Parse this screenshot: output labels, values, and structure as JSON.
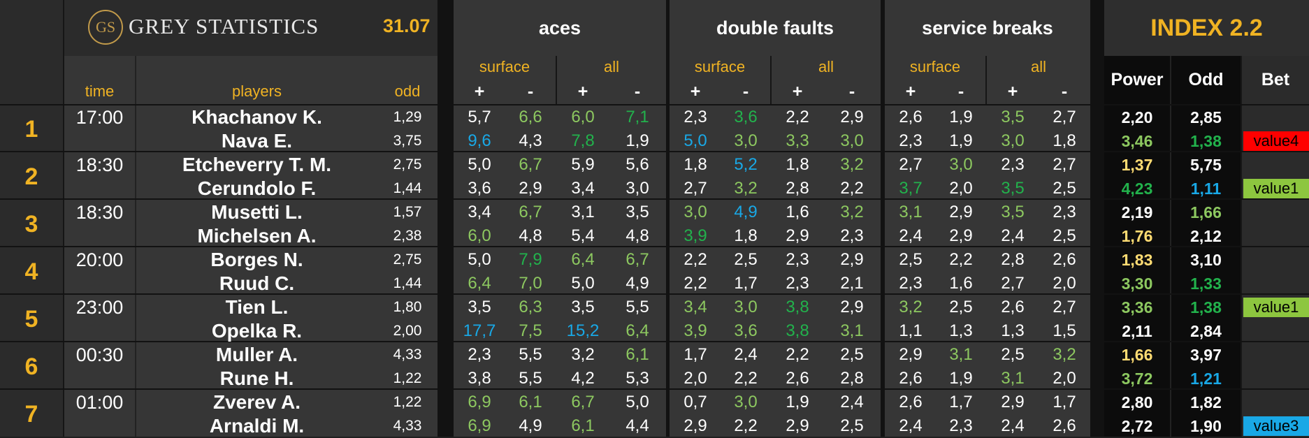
{
  "brand": {
    "logo_monogram": "GS",
    "name": "GREY STATISTICS"
  },
  "date": "31.07",
  "columns": {
    "time": "time",
    "players": "players",
    "odd": "odd",
    "groups": [
      "aces",
      "double faults",
      "service breaks"
    ],
    "surface": "surface",
    "all": "all",
    "plus": "+",
    "minus": "-"
  },
  "index": {
    "title": "INDEX 2.2",
    "power": "Power",
    "odd": "Odd",
    "bet": "Bet"
  },
  "colors": {
    "white": "#ffffff",
    "lightgreen": "#8dc860",
    "green": "#22b24c",
    "blue": "#19a8e6",
    "yellow": "#ffdc73"
  },
  "matches": [
    {
      "num": "1",
      "time": "17:00",
      "players": [
        {
          "name": "Khachanov K.",
          "odd": "1,29",
          "vals": [
            [
              "5,7",
              "white"
            ],
            [
              "6,6",
              "lightgreen"
            ],
            [
              "6,0",
              "lightgreen"
            ],
            [
              "7,1",
              "green"
            ],
            [
              "2,3",
              "white"
            ],
            [
              "3,6",
              "green"
            ],
            [
              "2,2",
              "white"
            ],
            [
              "2,9",
              "white"
            ],
            [
              "2,6",
              "white"
            ],
            [
              "1,9",
              "white"
            ],
            [
              "3,5",
              "lightgreen"
            ],
            [
              "2,7",
              "white"
            ]
          ],
          "power": [
            "2,20",
            "white"
          ],
          "idx_odd": [
            "2,85",
            "white"
          ],
          "bet": ""
        },
        {
          "name": "Nava E.",
          "odd": "3,75",
          "vals": [
            [
              "9,6",
              "blue"
            ],
            [
              "4,3",
              "white"
            ],
            [
              "7,8",
              "green"
            ],
            [
              "1,9",
              "white"
            ],
            [
              "5,0",
              "blue"
            ],
            [
              "3,0",
              "lightgreen"
            ],
            [
              "3,3",
              "lightgreen"
            ],
            [
              "3,0",
              "lightgreen"
            ],
            [
              "2,3",
              "white"
            ],
            [
              "1,9",
              "white"
            ],
            [
              "3,0",
              "lightgreen"
            ],
            [
              "1,8",
              "white"
            ]
          ],
          "power": [
            "3,46",
            "lightgreen"
          ],
          "idx_odd": [
            "1,38",
            "green"
          ],
          "bet": "value4",
          "bet_color": "#ff0000"
        }
      ]
    },
    {
      "num": "2",
      "time": "18:30",
      "players": [
        {
          "name": "Etcheverry T. M.",
          "odd": "2,75",
          "vals": [
            [
              "5,0",
              "white"
            ],
            [
              "6,7",
              "lightgreen"
            ],
            [
              "5,9",
              "white"
            ],
            [
              "5,6",
              "white"
            ],
            [
              "1,8",
              "white"
            ],
            [
              "5,2",
              "blue"
            ],
            [
              "1,8",
              "white"
            ],
            [
              "3,2",
              "lightgreen"
            ],
            [
              "2,7",
              "white"
            ],
            [
              "3,0",
              "lightgreen"
            ],
            [
              "2,3",
              "white"
            ],
            [
              "2,7",
              "white"
            ]
          ],
          "power": [
            "1,37",
            "yellow"
          ],
          "idx_odd": [
            "5,75",
            "white"
          ],
          "bet": ""
        },
        {
          "name": "Cerundolo F.",
          "odd": "1,44",
          "vals": [
            [
              "3,6",
              "white"
            ],
            [
              "2,9",
              "white"
            ],
            [
              "3,4",
              "white"
            ],
            [
              "3,0",
              "white"
            ],
            [
              "2,7",
              "white"
            ],
            [
              "3,2",
              "lightgreen"
            ],
            [
              "2,8",
              "white"
            ],
            [
              "2,2",
              "white"
            ],
            [
              "3,7",
              "green"
            ],
            [
              "2,0",
              "white"
            ],
            [
              "3,5",
              "green"
            ],
            [
              "2,5",
              "white"
            ]
          ],
          "power": [
            "4,23",
            "green"
          ],
          "idx_odd": [
            "1,11",
            "blue"
          ],
          "bet": "value1",
          "bet_color": "#8dc63f"
        }
      ]
    },
    {
      "num": "3",
      "time": "18:30",
      "players": [
        {
          "name": "Musetti L.",
          "odd": "1,57",
          "vals": [
            [
              "3,4",
              "white"
            ],
            [
              "6,7",
              "lightgreen"
            ],
            [
              "3,1",
              "white"
            ],
            [
              "3,5",
              "white"
            ],
            [
              "3,0",
              "lightgreen"
            ],
            [
              "4,9",
              "blue"
            ],
            [
              "1,6",
              "white"
            ],
            [
              "3,2",
              "lightgreen"
            ],
            [
              "3,1",
              "lightgreen"
            ],
            [
              "2,9",
              "white"
            ],
            [
              "3,5",
              "lightgreen"
            ],
            [
              "2,3",
              "white"
            ]
          ],
          "power": [
            "2,19",
            "white"
          ],
          "idx_odd": [
            "1,66",
            "lightgreen"
          ],
          "bet": ""
        },
        {
          "name": "Michelsen A.",
          "odd": "2,38",
          "vals": [
            [
              "6,0",
              "lightgreen"
            ],
            [
              "4,8",
              "white"
            ],
            [
              "5,4",
              "white"
            ],
            [
              "4,8",
              "white"
            ],
            [
              "3,9",
              "green"
            ],
            [
              "1,8",
              "white"
            ],
            [
              "2,9",
              "white"
            ],
            [
              "2,3",
              "white"
            ],
            [
              "2,4",
              "white"
            ],
            [
              "2,9",
              "white"
            ],
            [
              "2,4",
              "white"
            ],
            [
              "2,5",
              "white"
            ]
          ],
          "power": [
            "1,76",
            "yellow"
          ],
          "idx_odd": [
            "2,12",
            "white"
          ],
          "bet": ""
        }
      ]
    },
    {
      "num": "4",
      "time": "20:00",
      "players": [
        {
          "name": "Borges N.",
          "odd": "2,75",
          "vals": [
            [
              "5,0",
              "white"
            ],
            [
              "7,9",
              "green"
            ],
            [
              "6,4",
              "lightgreen"
            ],
            [
              "6,7",
              "lightgreen"
            ],
            [
              "2,2",
              "white"
            ],
            [
              "2,5",
              "white"
            ],
            [
              "2,3",
              "white"
            ],
            [
              "2,9",
              "white"
            ],
            [
              "2,5",
              "white"
            ],
            [
              "2,2",
              "white"
            ],
            [
              "2,8",
              "white"
            ],
            [
              "2,6",
              "white"
            ]
          ],
          "power": [
            "1,83",
            "yellow"
          ],
          "idx_odd": [
            "3,10",
            "white"
          ],
          "bet": ""
        },
        {
          "name": "Ruud C.",
          "odd": "1,44",
          "vals": [
            [
              "6,4",
              "lightgreen"
            ],
            [
              "7,0",
              "lightgreen"
            ],
            [
              "5,0",
              "white"
            ],
            [
              "4,9",
              "white"
            ],
            [
              "2,2",
              "white"
            ],
            [
              "1,7",
              "white"
            ],
            [
              "2,3",
              "white"
            ],
            [
              "2,1",
              "white"
            ],
            [
              "2,3",
              "white"
            ],
            [
              "1,6",
              "white"
            ],
            [
              "2,7",
              "white"
            ],
            [
              "2,0",
              "white"
            ]
          ],
          "power": [
            "3,30",
            "lightgreen"
          ],
          "idx_odd": [
            "1,33",
            "green"
          ],
          "bet": ""
        }
      ]
    },
    {
      "num": "5",
      "time": "23:00",
      "players": [
        {
          "name": "Tien L.",
          "odd": "1,80",
          "vals": [
            [
              "3,5",
              "white"
            ],
            [
              "6,3",
              "lightgreen"
            ],
            [
              "3,5",
              "white"
            ],
            [
              "5,5",
              "white"
            ],
            [
              "3,4",
              "lightgreen"
            ],
            [
              "3,0",
              "lightgreen"
            ],
            [
              "3,8",
              "green"
            ],
            [
              "2,9",
              "white"
            ],
            [
              "3,2",
              "lightgreen"
            ],
            [
              "2,5",
              "white"
            ],
            [
              "2,6",
              "white"
            ],
            [
              "2,7",
              "white"
            ]
          ],
          "power": [
            "3,36",
            "lightgreen"
          ],
          "idx_odd": [
            "1,38",
            "green"
          ],
          "bet": "value1",
          "bet_color": "#8dc63f"
        },
        {
          "name": "Opelka R.",
          "odd": "2,00",
          "vals": [
            [
              "17,7",
              "blue"
            ],
            [
              "7,5",
              "lightgreen"
            ],
            [
              "15,2",
              "blue"
            ],
            [
              "6,4",
              "lightgreen"
            ],
            [
              "3,9",
              "lightgreen"
            ],
            [
              "3,6",
              "lightgreen"
            ],
            [
              "3,8",
              "green"
            ],
            [
              "3,1",
              "lightgreen"
            ],
            [
              "1,1",
              "white"
            ],
            [
              "1,3",
              "white"
            ],
            [
              "1,3",
              "white"
            ],
            [
              "1,5",
              "white"
            ]
          ],
          "power": [
            "2,11",
            "white"
          ],
          "idx_odd": [
            "2,84",
            "white"
          ],
          "bet": ""
        }
      ]
    },
    {
      "num": "6",
      "time": "00:30",
      "players": [
        {
          "name": "Muller A.",
          "odd": "4,33",
          "vals": [
            [
              "2,3",
              "white"
            ],
            [
              "5,5",
              "white"
            ],
            [
              "3,2",
              "white"
            ],
            [
              "6,1",
              "lightgreen"
            ],
            [
              "1,7",
              "white"
            ],
            [
              "2,4",
              "white"
            ],
            [
              "2,2",
              "white"
            ],
            [
              "2,5",
              "white"
            ],
            [
              "2,9",
              "white"
            ],
            [
              "3,1",
              "lightgreen"
            ],
            [
              "2,5",
              "white"
            ],
            [
              "3,2",
              "lightgreen"
            ]
          ],
          "power": [
            "1,66",
            "yellow"
          ],
          "idx_odd": [
            "3,97",
            "white"
          ],
          "bet": ""
        },
        {
          "name": "Rune H.",
          "odd": "1,22",
          "vals": [
            [
              "3,8",
              "white"
            ],
            [
              "5,5",
              "white"
            ],
            [
              "4,2",
              "white"
            ],
            [
              "5,3",
              "white"
            ],
            [
              "2,0",
              "white"
            ],
            [
              "2,2",
              "white"
            ],
            [
              "2,6",
              "white"
            ],
            [
              "2,8",
              "white"
            ],
            [
              "2,6",
              "white"
            ],
            [
              "1,9",
              "white"
            ],
            [
              "3,1",
              "lightgreen"
            ],
            [
              "2,0",
              "white"
            ]
          ],
          "power": [
            "3,72",
            "lightgreen"
          ],
          "idx_odd": [
            "1,21",
            "blue"
          ],
          "bet": ""
        }
      ]
    },
    {
      "num": "7",
      "time": "01:00",
      "players": [
        {
          "name": "Zverev A.",
          "odd": "1,22",
          "vals": [
            [
              "6,9",
              "lightgreen"
            ],
            [
              "6,1",
              "lightgreen"
            ],
            [
              "6,7",
              "lightgreen"
            ],
            [
              "5,0",
              "white"
            ],
            [
              "0,7",
              "white"
            ],
            [
              "3,0",
              "lightgreen"
            ],
            [
              "1,9",
              "white"
            ],
            [
              "2,4",
              "white"
            ],
            [
              "2,6",
              "white"
            ],
            [
              "1,7",
              "white"
            ],
            [
              "2,9",
              "white"
            ],
            [
              "1,7",
              "white"
            ]
          ],
          "power": [
            "2,80",
            "white"
          ],
          "idx_odd": [
            "1,82",
            "white"
          ],
          "bet": ""
        },
        {
          "name": "Arnaldi M.",
          "odd": "4,33",
          "vals": [
            [
              "6,9",
              "lightgreen"
            ],
            [
              "4,9",
              "white"
            ],
            [
              "6,1",
              "lightgreen"
            ],
            [
              "4,4",
              "white"
            ],
            [
              "2,9",
              "white"
            ],
            [
              "2,2",
              "white"
            ],
            [
              "2,9",
              "white"
            ],
            [
              "2,5",
              "white"
            ],
            [
              "2,4",
              "white"
            ],
            [
              "2,3",
              "white"
            ],
            [
              "2,4",
              "white"
            ],
            [
              "2,6",
              "white"
            ]
          ],
          "power": [
            "2,72",
            "white"
          ],
          "idx_odd": [
            "1,90",
            "white"
          ],
          "bet": "value3",
          "bet_color": "#19a8e6"
        }
      ]
    }
  ]
}
